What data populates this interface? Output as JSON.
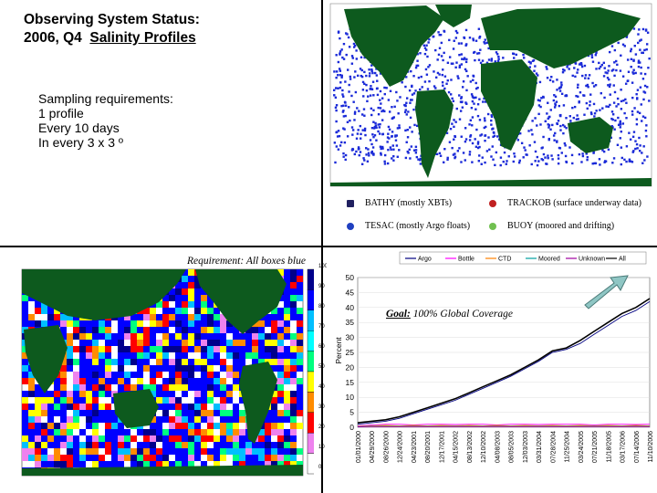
{
  "title": {
    "line1": "Observing System Status:",
    "line2_prefix": "2006, Q4",
    "line2_underlined": "Salinity Profiles"
  },
  "requirements": {
    "heading": "Sampling requirements:",
    "lines": [
      "1 profile",
      "Every 10 days",
      "In every 3 x 3 º"
    ]
  },
  "legend": {
    "items": [
      {
        "label": "BATHY (mostly XBTs)",
        "color": "#202060"
      },
      {
        "label": "TRACKOB (surface underway data)",
        "color": "#c02020"
      },
      {
        "label": "TESAC (mostly Argo floats)",
        "color": "#2040c0"
      },
      {
        "label": "BUOY (moored and drifting)",
        "color": "#70c050"
      }
    ]
  },
  "map_annotation": "Requirement: All boxes blue",
  "colorbar": {
    "ticks": [
      "100",
      "90",
      "80",
      "70",
      "60",
      "50",
      "40",
      "30",
      "20",
      "10",
      "0"
    ],
    "colors": [
      "#00008b",
      "#0000ff",
      "#00bfff",
      "#00ffff",
      "#00ff7f",
      "#ffff00",
      "#ff8c00",
      "#ff0000",
      "#ee82ee",
      "#ffffff"
    ]
  },
  "goal": {
    "label": "Goal:",
    "text": "100% Global Coverage"
  },
  "chart_data": {
    "type": "line",
    "title": "",
    "xlabel": "",
    "ylabel": "Percent",
    "ylim": [
      0,
      50
    ],
    "y_ticks": [
      0,
      5,
      10,
      15,
      20,
      25,
      30,
      35,
      40,
      45,
      50
    ],
    "legend_position": "top",
    "categories": [
      "01/01/2000",
      "04/29/2000",
      "08/26/2000",
      "12/24/2000",
      "04/23/2001",
      "08/20/2001",
      "12/17/2001",
      "04/15/2002",
      "08/13/2002",
      "12/10/2002",
      "04/08/2003",
      "08/05/2003",
      "12/03/2003",
      "03/31/2004",
      "07/28/2004",
      "11/25/2004",
      "03/24/2005",
      "07/21/2005",
      "11/18/2005",
      "03/17/2006",
      "07/14/2006",
      "11/10/2006"
    ],
    "series": [
      {
        "name": "Argo",
        "color": "#000080",
        "values": [
          1,
          1.5,
          2,
          3,
          4.5,
          6,
          7.5,
          9,
          11,
          13,
          15,
          17,
          19.5,
          22,
          25,
          26,
          28,
          31,
          34,
          37,
          39,
          42
        ]
      },
      {
        "name": "Bottle",
        "color": "#ff00ff",
        "values": [
          0.5,
          0.8,
          1,
          1,
          0.8,
          1,
          1,
          0.9,
          1,
          1,
          0.8,
          1,
          1,
          0.9,
          1,
          1,
          1,
          0.8,
          1,
          1,
          0.9,
          1
        ]
      },
      {
        "name": "CTD",
        "color": "#ff8000",
        "values": [
          0.3,
          0.5,
          0.6,
          0.5,
          0.6,
          0.5,
          0.6,
          0.5,
          0.6,
          0.5,
          0.6,
          0.5,
          0.6,
          0.5,
          0.6,
          0.5,
          0.6,
          0.5,
          0.6,
          0.5,
          0.6,
          0.5
        ]
      },
      {
        "name": "Moored",
        "color": "#00a0a0",
        "values": [
          0.2,
          0.3,
          0.3,
          0.3,
          0.3,
          0.3,
          0.3,
          0.3,
          0.3,
          0.3,
          0.3,
          0.3,
          0.3,
          0.3,
          0.3,
          0.3,
          0.3,
          0.3,
          0.3,
          0.3,
          0.3,
          0.3
        ]
      },
      {
        "name": "Unknown",
        "color": "#a000a0",
        "values": [
          0.1,
          0.2,
          0.2,
          0.2,
          0.2,
          0.2,
          0.2,
          0.2,
          0.2,
          0.2,
          0.2,
          0.2,
          0.2,
          0.2,
          0.2,
          0.2,
          0.2,
          0.2,
          0.2,
          0.2,
          0.2,
          0.2
        ]
      },
      {
        "name": "All",
        "color": "#000000",
        "values": [
          1.5,
          2,
          2.5,
          3.5,
          5,
          6.5,
          8,
          9.5,
          11.5,
          13.5,
          15.5,
          17.5,
          20,
          22.5,
          25.5,
          26.5,
          29,
          32,
          35,
          38,
          40,
          43
        ]
      }
    ]
  }
}
